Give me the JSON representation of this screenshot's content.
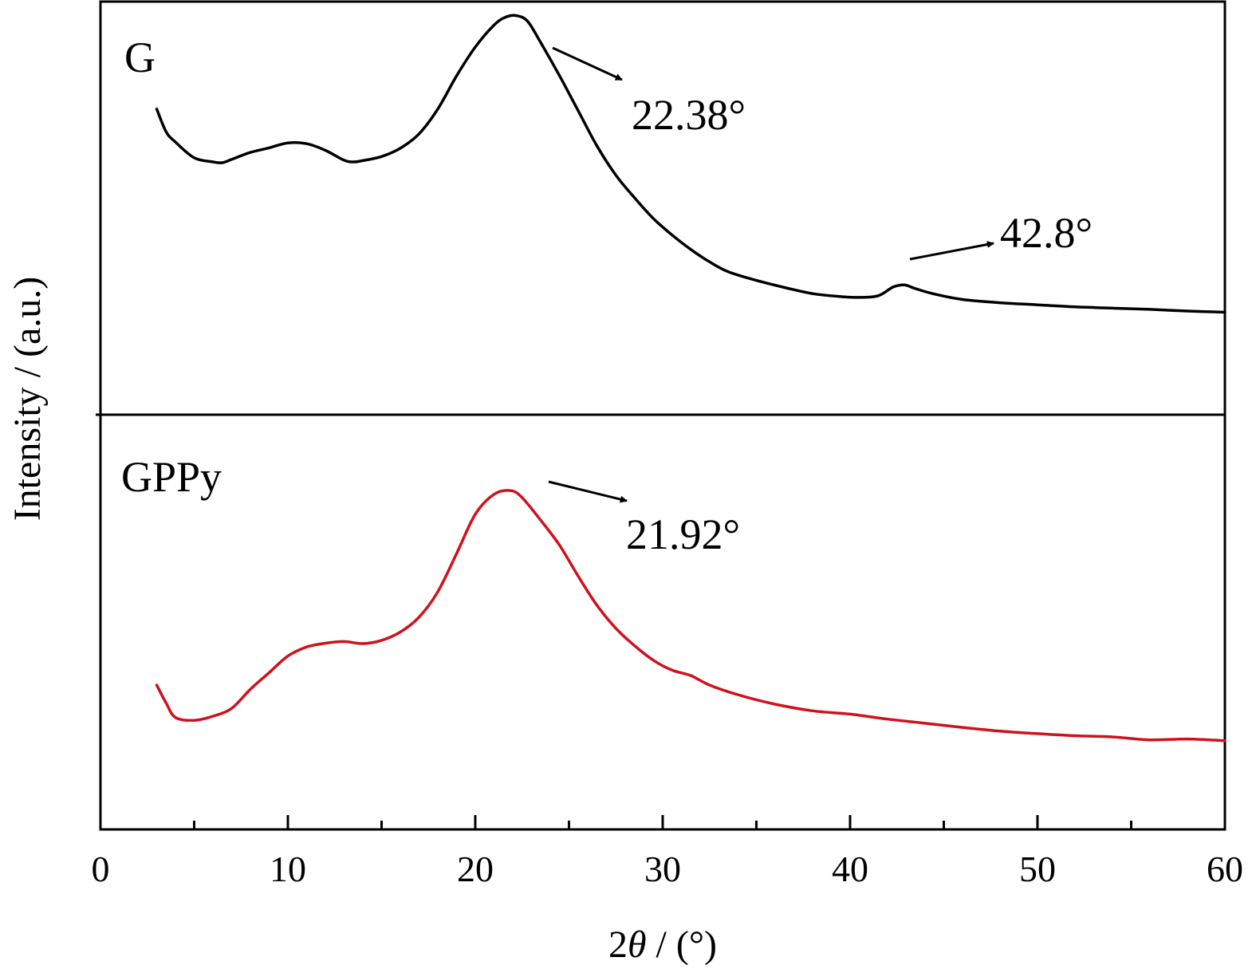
{
  "chart_data": {
    "type": "line",
    "xlabel_prefix": "2",
    "xlabel_theta": "θ",
    "xlabel_suffix": " / (°)",
    "ylabel": "Intensity / (a.u.)",
    "xlim": [
      0,
      60
    ],
    "x_major_ticks": [
      0,
      10,
      20,
      30,
      40,
      50,
      60
    ],
    "x_tick_labels": [
      "0",
      "10",
      "20",
      "30",
      "40",
      "50",
      "60"
    ],
    "x_minor_step": 5,
    "panels": [
      {
        "label": "G",
        "color": "#000000",
        "ylim": [
          0,
          100
        ],
        "x": [
          3,
          3.5,
          4,
          5,
          6,
          6.5,
          7,
          8,
          9,
          10,
          11,
          12,
          13,
          13.5,
          14,
          15,
          16,
          17,
          18,
          19,
          20,
          21,
          21.6,
          22.2,
          22.8,
          23.5,
          24.5,
          25.5,
          26.5,
          27.5,
          28.5,
          29.5,
          30.5,
          31.5,
          32.5,
          33.5,
          35,
          36.5,
          38,
          39.5,
          40.5,
          41.5,
          42.3,
          42.9,
          43.5,
          44.5,
          46,
          48,
          50,
          52,
          54,
          56,
          58,
          60
        ],
        "y": [
          74.0,
          68.5,
          66.0,
          62.2,
          61.2,
          61.0,
          61.8,
          63.5,
          64.6,
          65.8,
          65.6,
          64.0,
          61.6,
          61.2,
          61.5,
          62.5,
          64.5,
          68.0,
          74.0,
          82.0,
          89.0,
          94.3,
          96.2,
          96.6,
          95.2,
          90.0,
          82.0,
          73.5,
          65.0,
          58.0,
          52.5,
          47.5,
          43.5,
          40.0,
          37.0,
          34.6,
          32.5,
          30.8,
          29.3,
          28.6,
          28.4,
          28.8,
          30.9,
          31.4,
          30.5,
          29.2,
          27.9,
          27.1,
          26.6,
          26.1,
          25.8,
          25.5,
          25.1,
          24.8
        ],
        "annotations": [
          {
            "text": "22.38°",
            "x": 22.38
          },
          {
            "text": "42.8°",
            "x": 42.8
          }
        ]
      },
      {
        "label": "GPPy",
        "color": "#d0111b",
        "ylim": [
          0,
          100
        ],
        "x": [
          3,
          3.5,
          4,
          5,
          6,
          7,
          8,
          9,
          10,
          11,
          12,
          13,
          14,
          15,
          16,
          17,
          18,
          19,
          20,
          21,
          21.9,
          22.5,
          23.5,
          24.5,
          25.5,
          26.5,
          27.5,
          28.5,
          29.5,
          30.5,
          31.5,
          32.5,
          34,
          36,
          38,
          40,
          42,
          44,
          46,
          48,
          50,
          52,
          54,
          56,
          58,
          60
        ],
        "y": [
          34.8,
          30.5,
          27.0,
          26.3,
          27.3,
          29.2,
          33.8,
          37.8,
          41.8,
          44.0,
          44.9,
          45.3,
          44.8,
          45.6,
          47.6,
          51.2,
          57.3,
          66.5,
          76.0,
          80.8,
          81.7,
          80.0,
          74.5,
          68.5,
          61.0,
          54.0,
          48.5,
          44.3,
          40.8,
          38.4,
          37.1,
          34.8,
          32.5,
          30.2,
          28.6,
          27.8,
          26.6,
          25.6,
          24.6,
          23.7,
          23.1,
          22.6,
          22.3,
          21.6,
          21.8,
          21.4
        ],
        "annotations": [
          {
            "text": "21.92°",
            "x": 21.92
          }
        ]
      }
    ]
  }
}
